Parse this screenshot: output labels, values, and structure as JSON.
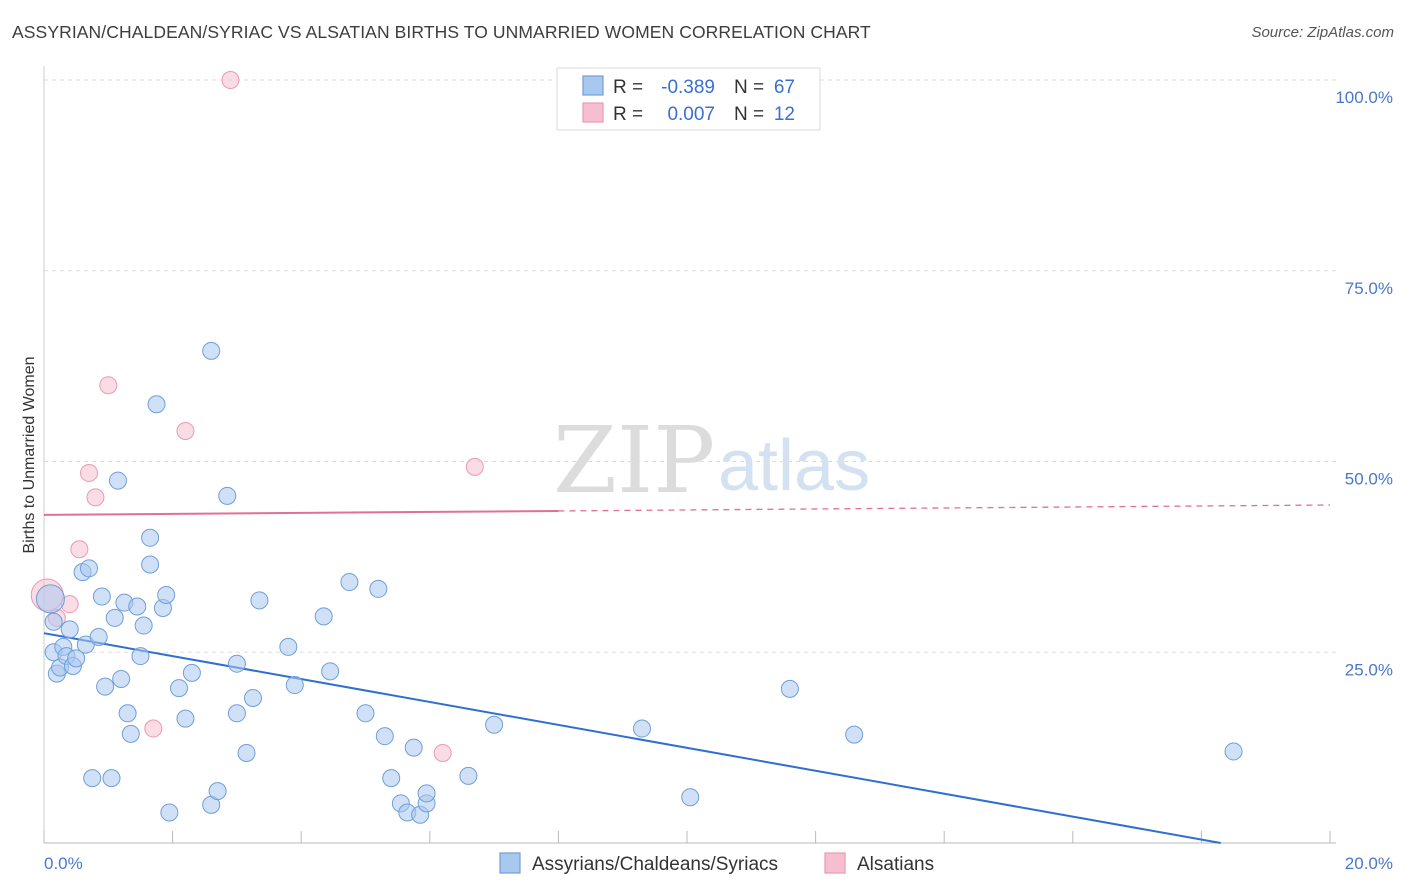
{
  "title": "ASSYRIAN/CHALDEAN/SYRIAC VS ALSATIAN BIRTHS TO UNMARRIED WOMEN CORRELATION CHART",
  "source": "Source: ZipAtlas.com",
  "watermark": {
    "zip": "ZIP",
    "atlas": "atlas"
  },
  "colors": {
    "blue_fill": "#a9c8f0",
    "blue_stroke": "#6f9fd8",
    "blue_line": "#2f6fd0",
    "pink_fill": "#f6bfd0",
    "pink_stroke": "#e99ab4",
    "pink_line": "#e07095",
    "tick_text": "#4a78c8",
    "grid": "#dddddd"
  },
  "stats": {
    "blue": {
      "r_label": "R =",
      "r_value": "-0.389",
      "n_label": "N =",
      "n_value": "67"
    },
    "pink": {
      "r_label": "R =",
      "r_value": "0.007",
      "n_label": "N =",
      "n_value": "12"
    }
  },
  "chart_data": {
    "type": "scatter",
    "title": "ASSYRIAN/CHALDEAN/SYRIAC VS ALSATIAN BIRTHS TO UNMARRIED WOMEN CORRELATION CHART",
    "xlabel": "",
    "ylabel": "Births to Unmarried Women",
    "xlim": [
      0,
      20
    ],
    "ylim": [
      0,
      100
    ],
    "x_tick_labels": [
      {
        "value": 0,
        "label": "0.0%"
      },
      {
        "value": 20,
        "label": "20.0%"
      }
    ],
    "y_tick_labels": [
      {
        "value": 25,
        "label": "25.0%"
      },
      {
        "value": 50,
        "label": "50.0%"
      },
      {
        "value": 75,
        "label": "75.0%"
      },
      {
        "value": 100,
        "label": "100.0%"
      }
    ],
    "legend": {
      "position": "bottom-center",
      "entries": [
        "Assyrians/Chaldeans/Syriacs",
        "Alsatians"
      ]
    },
    "series": [
      {
        "name": "Assyrians/Chaldeans/Syriacs",
        "color": "#a9c8f0",
        "r": -0.389,
        "n": 67,
        "trend": {
          "x_start": 0,
          "y_start": 27.5,
          "x_end": 18.3,
          "y_end": 0
        },
        "points": [
          [
            0.1,
            32.0
          ],
          [
            0.15,
            29.0
          ],
          [
            0.15,
            25.0
          ],
          [
            0.2,
            22.2
          ],
          [
            0.25,
            23.0
          ],
          [
            0.3,
            25.7
          ],
          [
            0.35,
            24.5
          ],
          [
            0.4,
            28.0
          ],
          [
            0.45,
            23.2
          ],
          [
            0.5,
            24.2
          ],
          [
            0.6,
            35.5
          ],
          [
            0.65,
            26.0
          ],
          [
            0.7,
            36.0
          ],
          [
            0.75,
            8.5
          ],
          [
            0.85,
            27.0
          ],
          [
            0.9,
            32.3
          ],
          [
            0.95,
            20.5
          ],
          [
            1.05,
            8.5
          ],
          [
            1.1,
            29.5
          ],
          [
            1.15,
            47.5
          ],
          [
            1.2,
            21.5
          ],
          [
            1.25,
            31.5
          ],
          [
            1.3,
            17.0
          ],
          [
            1.35,
            14.3
          ],
          [
            1.45,
            31.0
          ],
          [
            1.5,
            24.5
          ],
          [
            1.55,
            28.5
          ],
          [
            1.65,
            36.5
          ],
          [
            1.65,
            40.0
          ],
          [
            1.75,
            57.5
          ],
          [
            1.85,
            30.8
          ],
          [
            1.9,
            32.5
          ],
          [
            1.95,
            4.0
          ],
          [
            2.1,
            20.3
          ],
          [
            2.2,
            16.3
          ],
          [
            2.3,
            22.3
          ],
          [
            2.6,
            64.5
          ],
          [
            2.6,
            5.0
          ],
          [
            2.7,
            6.8
          ],
          [
            2.85,
            45.5
          ],
          [
            3.0,
            17.0
          ],
          [
            3.0,
            23.5
          ],
          [
            3.15,
            11.8
          ],
          [
            3.25,
            19.0
          ],
          [
            3.35,
            31.8
          ],
          [
            3.8,
            25.7
          ],
          [
            3.9,
            20.7
          ],
          [
            4.35,
            29.7
          ],
          [
            4.45,
            22.5
          ],
          [
            4.75,
            34.2
          ],
          [
            5.0,
            17.0
          ],
          [
            5.2,
            33.3
          ],
          [
            5.3,
            14.0
          ],
          [
            5.4,
            8.5
          ],
          [
            5.55,
            5.2
          ],
          [
            5.65,
            4.0
          ],
          [
            5.75,
            12.5
          ],
          [
            5.85,
            3.7
          ],
          [
            5.95,
            5.2
          ],
          [
            5.95,
            6.5
          ],
          [
            6.6,
            8.8
          ],
          [
            7.0,
            15.5
          ],
          [
            9.3,
            15.0
          ],
          [
            10.05,
            6.0
          ],
          [
            11.6,
            20.2
          ],
          [
            12.6,
            14.2
          ],
          [
            18.5,
            12.0
          ]
        ]
      },
      {
        "name": "Alsatians",
        "color": "#f6bfd0",
        "r": 0.007,
        "n": 12,
        "trend": {
          "x_start": 0,
          "y_start": 43.0,
          "x_end": 20,
          "y_end": 44.3,
          "solid_until_x": 8.0
        },
        "points": [
          [
            0.05,
            32.5
          ],
          [
            0.2,
            29.5
          ],
          [
            0.4,
            31.3
          ],
          [
            0.55,
            38.5
          ],
          [
            0.7,
            48.5
          ],
          [
            0.8,
            45.3
          ],
          [
            1.0,
            60.0
          ],
          [
            1.7,
            15.0
          ],
          [
            2.2,
            54.0
          ],
          [
            2.9,
            100.0
          ],
          [
            6.2,
            11.8
          ],
          [
            6.7,
            49.3
          ]
        ]
      }
    ]
  }
}
